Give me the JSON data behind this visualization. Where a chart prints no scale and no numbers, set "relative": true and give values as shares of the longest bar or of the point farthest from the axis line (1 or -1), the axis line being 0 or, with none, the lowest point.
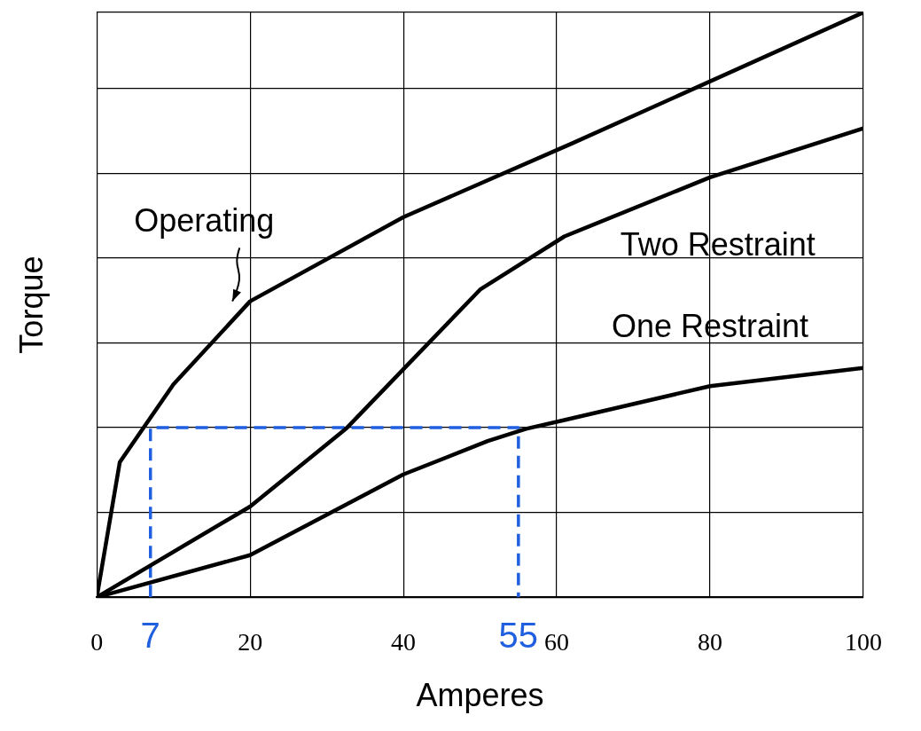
{
  "chart_data": {
    "type": "line",
    "xlabel": "Amperes",
    "ylabel": "Torque",
    "relative": true,
    "xlim": [
      0,
      100
    ],
    "xticks": [
      0,
      20,
      40,
      60,
      80,
      100
    ],
    "grid": true,
    "legend": false,
    "marker": "none",
    "line_style": "solid",
    "series": [
      {
        "name": "Operating",
        "color": "#000000",
        "x": [
          0,
          3,
          10,
          20,
          40,
          62,
          100
        ],
        "values": [
          0,
          0.231,
          0.364,
          0.506,
          0.65,
          0.776,
          1.0
        ]
      },
      {
        "name": "Two Restraint",
        "color": "#000000",
        "x": [
          0,
          20,
          32.5,
          40,
          50,
          61,
          80,
          100
        ],
        "values": [
          0,
          0.155,
          0.288,
          0.39,
          0.526,
          0.617,
          0.718,
          0.802
        ]
      },
      {
        "name": "One Restraint",
        "color": "#000000",
        "x": [
          0,
          20,
          40,
          51,
          56,
          61,
          80,
          100
        ],
        "values": [
          0,
          0.072,
          0.21,
          0.267,
          0.288,
          0.303,
          0.361,
          0.392
        ]
      },
      {
        "color": "#1f5fe0",
        "line_style": "dashed",
        "x": [
          7,
          7,
          55,
          55
        ],
        "values": [
          0,
          0.29,
          0.29,
          0
        ]
      }
    ],
    "annotations": [
      {
        "text": "7",
        "x": 7,
        "y": 0
      },
      {
        "text": "55",
        "x": 55,
        "y": 0
      }
    ]
  }
}
